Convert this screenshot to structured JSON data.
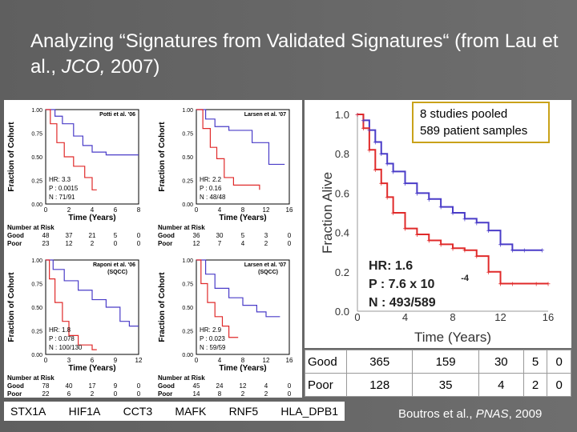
{
  "slide": {
    "title_part1": "Analyzing “Signatures from Validated Signatures“ (from Lau et al., ",
    "title_journal": "JCO,",
    "title_part2": " 2007)",
    "callout_line1": "8 studies pooled",
    "callout_line2": "589 patient samples",
    "citation_prefix": "Boutros et al., ",
    "citation_journal": "PNAS",
    "citation_suffix": ", 2009",
    "colors": {
      "good": "#4a3cc8",
      "poor": "#e02a2a",
      "background": "#666666",
      "callout_border": "#c9a21a"
    }
  },
  "genes": [
    "STX1A",
    "HIF1A",
    "CCT3",
    "MAFK",
    "RNF5",
    "HLA_DPB1"
  ],
  "mini_plots": [
    {
      "name": "potti",
      "study": "Potti et al. '06",
      "ylabel": "Fraction of Cohort",
      "xlabel": "Time (Years)",
      "yticks": [
        "1.00",
        "0.75",
        "0.50",
        "0.25",
        "0.00"
      ],
      "xticks": [
        "0",
        "2",
        "4",
        "6",
        "8"
      ],
      "hr": "HR: 3.3",
      "p": "P   : 0.0015",
      "n": "N   : 71/91",
      "risk_title": "Number at Risk",
      "good_label": "Good",
      "poor_label": "Poor",
      "good": [
        "48",
        "37",
        "21",
        "5",
        "0"
      ],
      "poor": [
        "23",
        "12",
        "2",
        "0",
        "0"
      ]
    },
    {
      "name": "larsen07",
      "study": "Larsen et al. '07",
      "ylabel": "Fraction of Cohort",
      "xlabel": "Time (Years)",
      "yticks": [
        "1.00",
        "0.75",
        "0.50",
        "0.25",
        "0.00"
      ],
      "xticks": [
        "0",
        "4",
        "8",
        "12",
        "16"
      ],
      "hr": "HR: 2.2",
      "p": "P   : 0.16",
      "n": "N   : 48/48",
      "risk_title": "Number at Risk",
      "good_label": "Good",
      "poor_label": "Poor",
      "good": [
        "36",
        "30",
        "5",
        "3",
        "0"
      ],
      "poor": [
        "12",
        "7",
        "4",
        "2",
        "0"
      ]
    },
    {
      "name": "raponi",
      "study": "Raponi et al. '06",
      "sub": "(SQCC)",
      "ylabel": "Fraction of Cohort",
      "xlabel": "Time (Years)",
      "yticks": [
        "1.00",
        "0.75",
        "0.50",
        "0.25",
        "0.00"
      ],
      "xticks": [
        "0",
        "3",
        "6",
        "9",
        "12"
      ],
      "hr": "HR: 1.8",
      "p": "P   : 0.078",
      "n": "N   : 100/130",
      "risk_title": "Number at Risk",
      "good_label": "Good",
      "poor_label": "Poor",
      "good": [
        "78",
        "40",
        "17",
        "9",
        "0"
      ],
      "poor": [
        "22",
        "6",
        "2",
        "0",
        "0"
      ]
    },
    {
      "name": "larsen07sqcc",
      "study": "Larsen et al. '07",
      "sub": "(SQCC)",
      "ylabel": "Fraction of Cohort",
      "xlabel": "Time (Years)",
      "yticks": [
        "1.00",
        "0.75",
        "0.50",
        "0.25",
        "0.00"
      ],
      "xticks": [
        "0",
        "4",
        "8",
        "12",
        "16"
      ],
      "hr": "HR: 2.9",
      "p": "P   : 0.023",
      "n": "N   : 59/59",
      "risk_title": "Number at Risk",
      "good_label": "Good",
      "poor_label": "Poor",
      "good": [
        "45",
        "24",
        "12",
        "4",
        "0"
      ],
      "poor": [
        "14",
        "8",
        "2",
        "2",
        "0"
      ]
    }
  ],
  "big_plot": {
    "ylabel": "Fraction Alive",
    "xlabel": "Time (Years)",
    "yticks": [
      "1.0",
      "0.8",
      "0.6",
      "0.4",
      "0.2",
      "0.0"
    ],
    "xticks": [
      "0",
      "4",
      "8",
      "12",
      "16"
    ],
    "hr_label": "HR: 1.6",
    "p_label": "P : 7.6 x 10",
    "p_exp": "-4",
    "n_label": "N : 493/589",
    "good_curve": [
      [
        0,
        1.0
      ],
      [
        0.5,
        0.97
      ],
      [
        1,
        0.92
      ],
      [
        1.5,
        0.86
      ],
      [
        2,
        0.8
      ],
      [
        2.5,
        0.75
      ],
      [
        3,
        0.71
      ],
      [
        4,
        0.65
      ],
      [
        5,
        0.6
      ],
      [
        6,
        0.57
      ],
      [
        7,
        0.53
      ],
      [
        8,
        0.5
      ],
      [
        9,
        0.47
      ],
      [
        10,
        0.45
      ],
      [
        11,
        0.41
      ],
      [
        12,
        0.34
      ],
      [
        13,
        0.31
      ],
      [
        14,
        0.31
      ],
      [
        15.5,
        0.31
      ]
    ],
    "poor_curve": [
      [
        0,
        1.0
      ],
      [
        0.5,
        0.93
      ],
      [
        1,
        0.82
      ],
      [
        1.5,
        0.72
      ],
      [
        2,
        0.65
      ],
      [
        2.5,
        0.58
      ],
      [
        3,
        0.5
      ],
      [
        4,
        0.42
      ],
      [
        5,
        0.39
      ],
      [
        6,
        0.36
      ],
      [
        7,
        0.34
      ],
      [
        8,
        0.32
      ],
      [
        9,
        0.31
      ],
      [
        10,
        0.28
      ],
      [
        11,
        0.2
      ],
      [
        12,
        0.14
      ],
      [
        13,
        0.14
      ],
      [
        15,
        0.14
      ],
      [
        16,
        0.14
      ]
    ]
  },
  "risk_table": {
    "good_label": "Good",
    "poor_label": "Poor",
    "good": [
      "365",
      "159",
      "30",
      "5",
      "0"
    ],
    "poor": [
      "128",
      "35",
      "4",
      "2",
      "0"
    ]
  }
}
